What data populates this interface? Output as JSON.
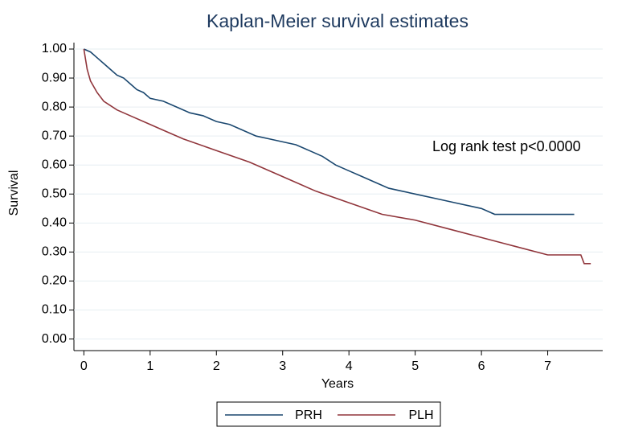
{
  "chart_data": {
    "type": "line",
    "title": "Kaplan-Meier survival estimates",
    "x_label": "Years",
    "y_label": "Survival",
    "annotation": "Log rank test p<0.0000",
    "xlim": [
      -0.15,
      7.83
    ],
    "xticks": [
      0,
      1,
      2,
      3,
      4,
      5,
      6,
      7
    ],
    "ylim": [
      -0.04,
      1.0
    ],
    "yticks": [
      {
        "value": 0,
        "label": "0.00"
      },
      {
        "value": 0.1,
        "label": "0.10"
      },
      {
        "value": 0.2,
        "label": "0.20"
      },
      {
        "value": 0.3,
        "label": "0.30"
      },
      {
        "value": 0.4,
        "label": "0.40"
      },
      {
        "value": 0.5,
        "label": "0.50"
      },
      {
        "value": 0.6,
        "label": "0.60"
      },
      {
        "value": 0.7,
        "label": "0.70"
      },
      {
        "value": 0.8,
        "label": "0.80"
      },
      {
        "value": 0.9,
        "label": "0.90"
      },
      {
        "value": 1,
        "label": "1.00"
      }
    ],
    "grid": true,
    "legend": "bottom",
    "series": [
      {
        "name": "PRH",
        "color": "#1a476f",
        "x": [
          0,
          0.1,
          0.2,
          0.3,
          0.4,
          0.5,
          0.6,
          0.7,
          0.8,
          0.9,
          1.0,
          1.2,
          1.4,
          1.6,
          1.8,
          2.0,
          2.2,
          2.4,
          2.6,
          2.8,
          3.0,
          3.2,
          3.4,
          3.6,
          3.8,
          4.0,
          4.2,
          4.4,
          4.6,
          4.8,
          5.0,
          5.4,
          5.6,
          6.0,
          6.2,
          7.0,
          7.4
        ],
        "values": [
          1.0,
          0.99,
          0.97,
          0.95,
          0.93,
          0.91,
          0.9,
          0.88,
          0.86,
          0.85,
          0.83,
          0.82,
          0.8,
          0.78,
          0.77,
          0.75,
          0.74,
          0.72,
          0.7,
          0.69,
          0.68,
          0.67,
          0.65,
          0.63,
          0.6,
          0.58,
          0.56,
          0.54,
          0.52,
          0.51,
          0.5,
          0.48,
          0.47,
          0.45,
          0.43,
          0.43,
          0.43
        ]
      },
      {
        "name": "PLH",
        "color": "#90353b",
        "x": [
          0,
          0.05,
          0.1,
          0.2,
          0.3,
          0.5,
          0.7,
          1.0,
          1.2,
          1.5,
          2.0,
          2.5,
          3.0,
          3.5,
          4.0,
          4.5,
          5.0,
          5.5,
          6.0,
          6.5,
          7.0,
          7.5,
          7.55,
          7.65
        ],
        "values": [
          1.0,
          0.93,
          0.89,
          0.85,
          0.82,
          0.79,
          0.77,
          0.74,
          0.72,
          0.69,
          0.65,
          0.61,
          0.56,
          0.51,
          0.47,
          0.43,
          0.41,
          0.38,
          0.35,
          0.32,
          0.29,
          0.29,
          0.26,
          0.26
        ]
      }
    ]
  }
}
